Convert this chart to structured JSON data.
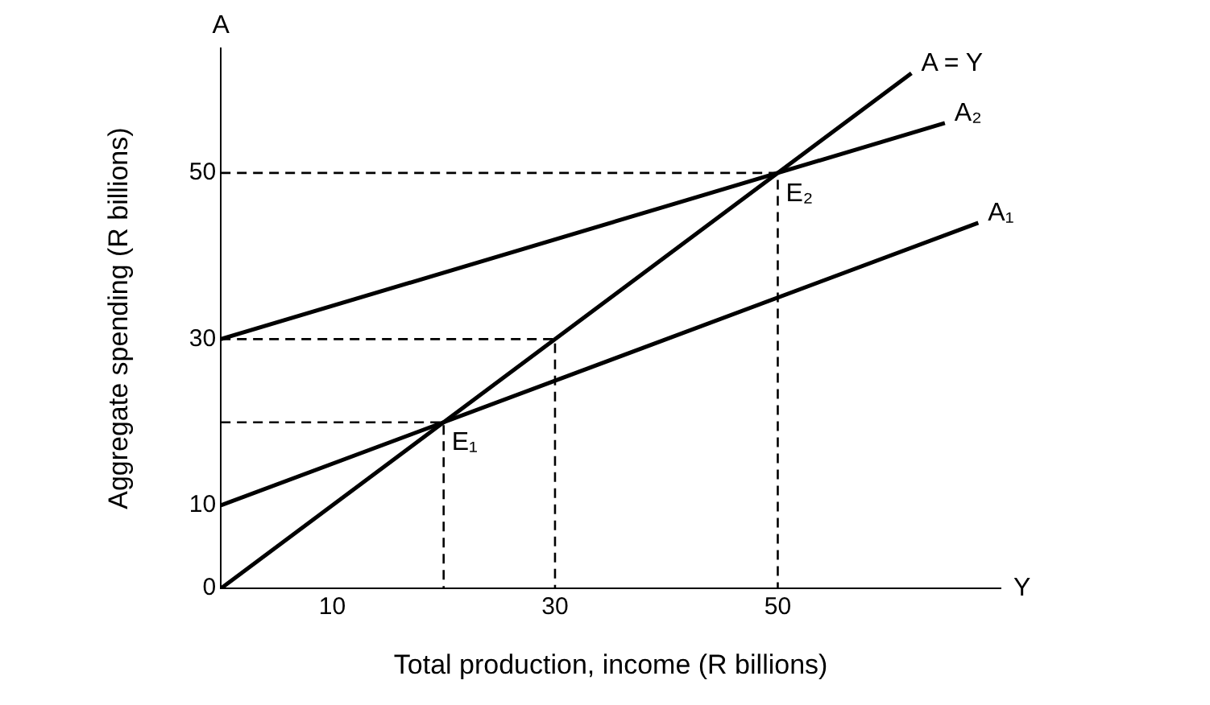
{
  "chart_data": {
    "type": "line",
    "xlabel": "Total production, income (R billions)",
    "ylabel": "Aggregate spending (R billions)",
    "xlim": [
      0,
      70
    ],
    "ylim": [
      0,
      65
    ],
    "xticks": [
      10,
      30,
      50
    ],
    "yticks": [
      0,
      10,
      30,
      50
    ],
    "grid": false,
    "legend": false,
    "marker": "none",
    "series": [
      {
        "name": "A = Y",
        "color": "#000000",
        "x": [
          0,
          62
        ],
        "values": [
          0,
          62
        ]
      },
      {
        "name": "A₂",
        "color": "#000000",
        "x": [
          0,
          65
        ],
        "values": [
          30,
          56
        ]
      },
      {
        "name": "A₁",
        "color": "#000000",
        "x": [
          0,
          68
        ],
        "values": [
          10,
          44
        ]
      },
      {
        "color": "#000000",
        "line_style": "dashed",
        "x": [
          0,
          50,
          50
        ],
        "values": [
          50,
          50,
          0
        ]
      },
      {
        "color": "#000000",
        "line_style": "dashed",
        "x": [
          0,
          30,
          30
        ],
        "values": [
          30,
          30,
          0
        ]
      },
      {
        "color": "#000000",
        "line_style": "dashed",
        "x": [
          0,
          20,
          20
        ],
        "values": [
          20,
          20,
          0
        ]
      }
    ],
    "annotations": [
      {
        "text": "E₁",
        "x": 20,
        "y": 20
      },
      {
        "text": "E₂",
        "x": 50,
        "y": 50
      },
      "A",
      "Y"
    ]
  }
}
